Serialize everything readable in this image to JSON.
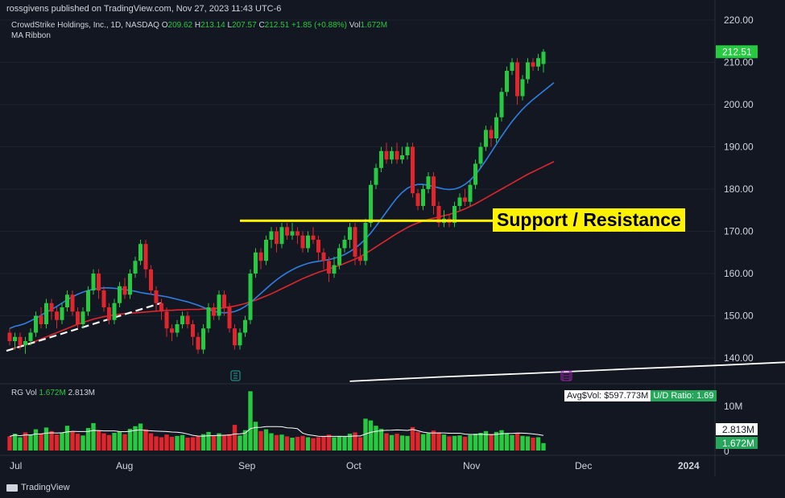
{
  "header": {
    "publisher": "rossgivens published on TradingView.com, Nov 27, 2023 11:43 UTC-6"
  },
  "symbol": {
    "name": "CrowdStrike Holdings, Inc., 1D, NASDAQ",
    "o_label": "O",
    "o": "209.62",
    "h_label": "H",
    "h": "213.14",
    "l_label": "L",
    "l": "207.57",
    "c_label": "C",
    "c": "212.51",
    "change": "+1.85 (+0.88%)",
    "vol_label": "Vol",
    "vol": "1.672M"
  },
  "indicator": {
    "name": "MA Ribbon"
  },
  "volume_panel": {
    "title": "RG Vol",
    "v1": "1.672M",
    "v2": "2.813M",
    "avg_label": "Avg$Vol: $597.773M",
    "ud_label": "U/D Ratio: 1.69",
    "axis_10m": "10M",
    "axis_0": "0",
    "badge_avg": "2.813M",
    "badge_vol": "1.672M"
  },
  "annotation": {
    "text": "Support / Resistance",
    "level": 172.5
  },
  "footer": {
    "brand": "TradingView"
  },
  "colors": {
    "background": "#131722",
    "up": "#26c940",
    "down": "#e0262c",
    "ma_short": "#2f7fe3",
    "ma_mid": "#e0262c",
    "ma_long": "#ffffff",
    "annotation": "#fff200",
    "grid": "#1e2230"
  },
  "chart_data": {
    "type": "candlestick",
    "price_axis": {
      "ticks": [
        "220.00",
        "210.00",
        "200.00",
        "190.00",
        "180.00",
        "170.00",
        "160.00",
        "150.00",
        "140.00"
      ],
      "ylim": [
        136,
        222
      ]
    },
    "time_axis": [
      "Jul",
      "Aug",
      "Sep",
      "Oct",
      "Nov",
      "Dec",
      "2024"
    ],
    "last_price": "212.51",
    "candles": [
      [
        146,
        144,
        147,
        143
      ],
      [
        144,
        145,
        146,
        142
      ],
      [
        145,
        143,
        146,
        142
      ],
      [
        143,
        144,
        145,
        141
      ],
      [
        144,
        146,
        147,
        143
      ],
      [
        146,
        150,
        151,
        145
      ],
      [
        150,
        148,
        152,
        147
      ],
      [
        148,
        153,
        154,
        147
      ],
      [
        153,
        151,
        154,
        149
      ],
      [
        151,
        149,
        152,
        147
      ],
      [
        149,
        152,
        153,
        148
      ],
      [
        152,
        155,
        156,
        151
      ],
      [
        155,
        151,
        156,
        150
      ],
      [
        151,
        148,
        152,
        147
      ],
      [
        148,
        151,
        152,
        147
      ],
      [
        151,
        156,
        157,
        150
      ],
      [
        156,
        160,
        161,
        155
      ],
      [
        160,
        156,
        161,
        154
      ],
      [
        156,
        152,
        157,
        151
      ],
      [
        152,
        149,
        153,
        148
      ],
      [
        149,
        153,
        154,
        148
      ],
      [
        153,
        157,
        158,
        152
      ],
      [
        157,
        155,
        159,
        154
      ],
      [
        155,
        160,
        161,
        154
      ],
      [
        160,
        163,
        164,
        159
      ],
      [
        163,
        167,
        168,
        162
      ],
      [
        167,
        161,
        168,
        159
      ],
      [
        161,
        156,
        162,
        155
      ],
      [
        156,
        153,
        157,
        151
      ],
      [
        153,
        151,
        154,
        149
      ],
      [
        151,
        147,
        152,
        145
      ],
      [
        147,
        146,
        148,
        144
      ],
      [
        146,
        148,
        149,
        145
      ],
      [
        148,
        150,
        151,
        147
      ],
      [
        150,
        148,
        151,
        147
      ],
      [
        148,
        145,
        149,
        143
      ],
      [
        145,
        142,
        146,
        141
      ],
      [
        142,
        147,
        148,
        141
      ],
      [
        147,
        152,
        153,
        146
      ],
      [
        152,
        150,
        153,
        149
      ],
      [
        150,
        155,
        156,
        149
      ],
      [
        155,
        152,
        156,
        150
      ],
      [
        152,
        147,
        153,
        146
      ],
      [
        147,
        143,
        148,
        142
      ],
      [
        143,
        146,
        147,
        142
      ],
      [
        146,
        149,
        150,
        145
      ],
      [
        149,
        160,
        161,
        148
      ],
      [
        160,
        165,
        166,
        159
      ],
      [
        165,
        163,
        166,
        161
      ],
      [
        163,
        168,
        169,
        162
      ],
      [
        168,
        170,
        171,
        166
      ],
      [
        170,
        167,
        171,
        165
      ],
      [
        167,
        171,
        172,
        166
      ],
      [
        171,
        169,
        172,
        168
      ],
      [
        169,
        170,
        172,
        168
      ],
      [
        170,
        169,
        171,
        167
      ],
      [
        169,
        166,
        170,
        165
      ],
      [
        166,
        169,
        170,
        165
      ],
      [
        169,
        168,
        171,
        167
      ],
      [
        168,
        165,
        169,
        163
      ],
      [
        165,
        163,
        166,
        161
      ],
      [
        163,
        160,
        164,
        158
      ],
      [
        160,
        162,
        164,
        159
      ],
      [
        162,
        166,
        167,
        161
      ],
      [
        166,
        168,
        169,
        165
      ],
      [
        168,
        171,
        172,
        166
      ],
      [
        171,
        164,
        172,
        162
      ],
      [
        164,
        163,
        166,
        162
      ],
      [
        163,
        172,
        173,
        162
      ],
      [
        172,
        181,
        182,
        171
      ],
      [
        181,
        185,
        186,
        180
      ],
      [
        185,
        189,
        190,
        184
      ],
      [
        189,
        187,
        191,
        186
      ],
      [
        187,
        189,
        190,
        186
      ],
      [
        189,
        187,
        191,
        186
      ],
      [
        187,
        188,
        190,
        186
      ],
      [
        188,
        190,
        191,
        187
      ],
      [
        190,
        179,
        191,
        178
      ],
      [
        179,
        176,
        180,
        175
      ],
      [
        176,
        180,
        181,
        175
      ],
      [
        180,
        183,
        184,
        179
      ],
      [
        183,
        176,
        184,
        174
      ],
      [
        176,
        172,
        177,
        171
      ],
      [
        172,
        173,
        175,
        171
      ],
      [
        173,
        172,
        174,
        171
      ],
      [
        172,
        176,
        177,
        171
      ],
      [
        176,
        178,
        179,
        175
      ],
      [
        178,
        177,
        180,
        176
      ],
      [
        177,
        181,
        182,
        176
      ],
      [
        181,
        186,
        187,
        180
      ],
      [
        186,
        190,
        191,
        185
      ],
      [
        190,
        194,
        195,
        189
      ],
      [
        194,
        192,
        195,
        190
      ],
      [
        192,
        197,
        198,
        191
      ],
      [
        197,
        203,
        204,
        196
      ],
      [
        203,
        208,
        209,
        202
      ],
      [
        208,
        210,
        211,
        207
      ],
      [
        210,
        202,
        211,
        200
      ],
      [
        202,
        206,
        207,
        201
      ],
      [
        206,
        210,
        211,
        205
      ],
      [
        210,
        209,
        211,
        208
      ],
      [
        209,
        211,
        212,
        208
      ],
      [
        209.62,
        212.51,
        213.14,
        207.57
      ]
    ],
    "ma_short": [
      147,
      147.5,
      147.8,
      148.2,
      148.8,
      149.4,
      150.1,
      150.9,
      151.5,
      152.2,
      153.0,
      153.8,
      154.5,
      155.1,
      155.6,
      156.0,
      156.3,
      156.5,
      156.6,
      156.6,
      156.5,
      156.4,
      156.2,
      156.0,
      155.8,
      155.5,
      155.3,
      155.1,
      154.9,
      154.7,
      154.5,
      154.2,
      153.9,
      153.6,
      153.3,
      152.9,
      152.5,
      152.0,
      151.5,
      151.1,
      150.8,
      150.7,
      150.8,
      151.0,
      151.5,
      152.2,
      153.1,
      154.2,
      155.3,
      156.4,
      157.5,
      158.5,
      159.4,
      160.2,
      160.9,
      161.5,
      162.0,
      162.4,
      162.7,
      162.9,
      163.1,
      163.3,
      163.6,
      164.0,
      164.5,
      165.2,
      166.0,
      167.0,
      168.2,
      169.6,
      171.2,
      172.9,
      174.6,
      176.3,
      177.9,
      179.2,
      180.2,
      180.8,
      181.1,
      181.1,
      180.9,
      180.6,
      180.3,
      180.0,
      179.9,
      180.0,
      180.4,
      181.1,
      182.1,
      183.4,
      185.0,
      186.8,
      188.7,
      190.6,
      192.5,
      194.3,
      196.0,
      197.5,
      198.9,
      200.1,
      201.2,
      202.2,
      203.2,
      204.2,
      205.2
    ],
    "ma_mid": [
      142,
      142.4,
      142.8,
      143.2,
      143.6,
      144.0,
      144.5,
      145.0,
      145.5,
      146.0,
      146.5,
      147.0,
      147.5,
      148.0,
      148.4,
      148.8,
      149.2,
      149.5,
      149.8,
      150.0,
      150.2,
      150.4,
      150.5,
      150.6,
      150.7,
      150.8,
      150.9,
      151.0,
      151.1,
      151.2,
      151.3,
      151.3,
      151.4,
      151.4,
      151.5,
      151.5,
      151.5,
      151.6,
      151.6,
      151.7,
      151.8,
      151.9,
      152.1,
      152.3,
      152.6,
      152.9,
      153.3,
      153.7,
      154.2,
      154.7,
      155.2,
      155.8,
      156.4,
      157.0,
      157.6,
      158.2,
      158.8,
      159.3,
      159.8,
      160.3,
      160.7,
      161.1,
      161.5,
      161.9,
      162.4,
      162.9,
      163.4,
      164.0,
      164.7,
      165.5,
      166.3,
      167.1,
      167.9,
      168.7,
      169.5,
      170.2,
      170.9,
      171.5,
      172.0,
      172.4,
      172.8,
      173.1,
      173.4,
      173.7,
      174.0,
      174.4,
      174.8,
      175.3,
      175.9,
      176.5,
      177.2,
      177.9,
      178.6,
      179.3,
      180.0,
      180.7,
      181.4,
      182.1,
      182.8,
      183.5,
      184.1,
      184.7,
      185.3,
      185.9,
      186.5
    ],
    "ma_long": [
      [
        65,
        134.5
      ],
      [
        82,
        135.5
      ],
      [
        100,
        136.4
      ],
      [
        118,
        137.4
      ],
      [
        136,
        138.3
      ],
      [
        152,
        139.2
      ],
      [
        168,
        140.1
      ],
      [
        184,
        141.0
      ],
      [
        200,
        141.9
      ],
      [
        216,
        142.8
      ],
      [
        232,
        143.7
      ],
      [
        248,
        144.6
      ],
      [
        264,
        145.5
      ],
      [
        280,
        146.4
      ],
      [
        296,
        147.3
      ],
      [
        312,
        148.2
      ],
      [
        328,
        149.2
      ],
      [
        344,
        150.2
      ],
      [
        360,
        151.3
      ]
    ],
    "volume": [
      [
        3.2,
        0
      ],
      [
        3.8,
        1
      ],
      [
        3.0,
        1
      ],
      [
        4.1,
        0
      ],
      [
        3.5,
        1
      ],
      [
        4.8,
        1
      ],
      [
        3.9,
        0
      ],
      [
        5.2,
        1
      ],
      [
        4.4,
        0
      ],
      [
        3.6,
        0
      ],
      [
        4.0,
        1
      ],
      [
        5.6,
        1
      ],
      [
        4.2,
        0
      ],
      [
        3.8,
        0
      ],
      [
        3.4,
        1
      ],
      [
        5.1,
        1
      ],
      [
        6.2,
        1
      ],
      [
        4.6,
        0
      ],
      [
        3.9,
        0
      ],
      [
        3.5,
        0
      ],
      [
        4.0,
        1
      ],
      [
        4.3,
        1
      ],
      [
        3.7,
        0
      ],
      [
        4.9,
        1
      ],
      [
        5.5,
        1
      ],
      [
        6.1,
        1
      ],
      [
        4.8,
        0
      ],
      [
        3.9,
        0
      ],
      [
        3.2,
        0
      ],
      [
        3.0,
        0
      ],
      [
        3.6,
        0
      ],
      [
        3.1,
        0
      ],
      [
        3.3,
        1
      ],
      [
        3.5,
        1
      ],
      [
        2.9,
        0
      ],
      [
        3.0,
        0
      ],
      [
        3.2,
        0
      ],
      [
        3.7,
        1
      ],
      [
        4.2,
        1
      ],
      [
        3.3,
        0
      ],
      [
        3.9,
        1
      ],
      [
        3.5,
        0
      ],
      [
        3.7,
        0
      ],
      [
        5.8,
        0
      ],
      [
        3.4,
        1
      ],
      [
        4.6,
        1
      ],
      [
        13.4,
        1
      ],
      [
        6.5,
        1
      ],
      [
        4.4,
        0
      ],
      [
        4.8,
        1
      ],
      [
        3.9,
        1
      ],
      [
        3.5,
        0
      ],
      [
        3.6,
        1
      ],
      [
        3.2,
        0
      ],
      [
        2.9,
        1
      ],
      [
        3.1,
        0
      ],
      [
        3.3,
        0
      ],
      [
        3.0,
        1
      ],
      [
        2.8,
        0
      ],
      [
        3.0,
        0
      ],
      [
        3.2,
        0
      ],
      [
        3.6,
        0
      ],
      [
        3.0,
        1
      ],
      [
        3.3,
        1
      ],
      [
        3.1,
        1
      ],
      [
        3.8,
        1
      ],
      [
        4.1,
        0
      ],
      [
        3.0,
        0
      ],
      [
        7.2,
        1
      ],
      [
        6.8,
        1
      ],
      [
        5.6,
        1
      ],
      [
        4.9,
        1
      ],
      [
        3.9,
        0
      ],
      [
        3.5,
        1
      ],
      [
        3.8,
        0
      ],
      [
        3.4,
        1
      ],
      [
        3.3,
        1
      ],
      [
        5.3,
        0
      ],
      [
        4.2,
        0
      ],
      [
        3.7,
        1
      ],
      [
        3.9,
        1
      ],
      [
        4.5,
        0
      ],
      [
        4.1,
        0
      ],
      [
        3.6,
        1
      ],
      [
        3.2,
        0
      ],
      [
        3.3,
        1
      ],
      [
        3.4,
        1
      ],
      [
        3.1,
        0
      ],
      [
        3.5,
        1
      ],
      [
        3.8,
        1
      ],
      [
        4.0,
        1
      ],
      [
        4.4,
        1
      ],
      [
        3.7,
        0
      ],
      [
        4.2,
        1
      ],
      [
        4.6,
        1
      ],
      [
        3.9,
        1
      ],
      [
        3.5,
        1
      ],
      [
        3.9,
        0
      ],
      [
        3.3,
        1
      ],
      [
        3.2,
        1
      ],
      [
        2.9,
        0
      ],
      [
        3.0,
        1
      ],
      [
        1.672,
        1
      ]
    ],
    "volume_axis": {
      "ylim": [
        0,
        14
      ]
    }
  }
}
